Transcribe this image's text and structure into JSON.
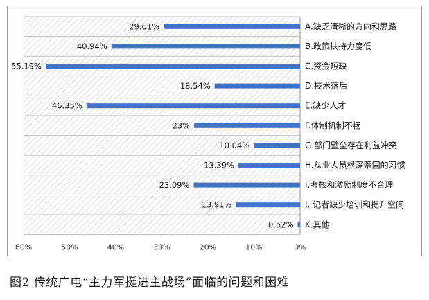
{
  "caption": "图2 传统广电“主力军挺进主战场”面临的问题和困难",
  "colors": {
    "bar": "#4472c4",
    "hatch": "#c8c8c8",
    "grid": "#bdbdbd"
  },
  "chart_data": {
    "type": "bar",
    "orientation": "horizontal",
    "x_reversed": true,
    "xlim": [
      0,
      60
    ],
    "x_ticks": [
      "60%",
      "50%",
      "40%",
      "30%",
      "20%",
      "10%",
      "0%"
    ],
    "categories": [
      "A.缺乏清晰的方向和思路",
      "B.政策扶持力度低",
      "C.资金短缺",
      "D.技术落后",
      "E.缺少人才",
      "F.体制机制不畅",
      "G.部门壁垒存在利益冲突",
      "H.从业人员根深蒂固的习惯",
      "I.考核和激励制度不合理",
      "J. 记者缺少培训和提升空间",
      "K.其他"
    ],
    "values": [
      29.61,
      40.94,
      55.19,
      18.54,
      46.35,
      23,
      10.04,
      13.39,
      23.09,
      13.91,
      0.52
    ],
    "value_labels": [
      "29.61%",
      "40.94%",
      "55.19%",
      "18.54%",
      "46.35%",
      "23%",
      "10.04%",
      "13.39%",
      "23.09%",
      "13.91%",
      "0.52%"
    ],
    "grid": true,
    "legend": "none"
  }
}
